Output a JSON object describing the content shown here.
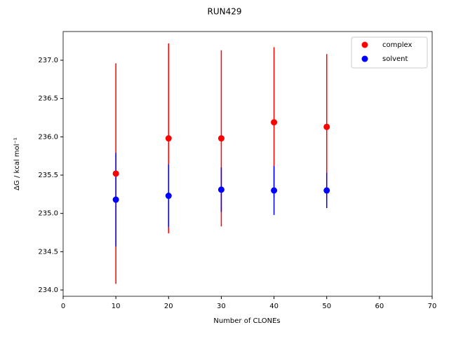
{
  "chart_data": {
    "type": "errorbar-scatter",
    "title": "RUN429",
    "xlabel": "Number of CLONEs",
    "ylabel": "ΔG / kcal mol⁻¹",
    "x": [
      10,
      20,
      30,
      40,
      50
    ],
    "series": [
      {
        "name": "complex",
        "color": "#ff0000",
        "values": [
          235.52,
          235.98,
          235.98,
          236.19,
          236.13
        ],
        "errors": [
          1.44,
          1.24,
          1.15,
          0.98,
          0.95
        ]
      },
      {
        "name": "solvent",
        "color": "#0000ff",
        "values": [
          235.18,
          235.23,
          235.31,
          235.3,
          235.3
        ],
        "errors": [
          0.61,
          0.41,
          0.29,
          0.32,
          0.23
        ]
      }
    ],
    "xlim": [
      0,
      70
    ],
    "xticks": [
      0,
      10,
      20,
      30,
      40,
      50,
      60,
      70
    ],
    "ylim": [
      233.918,
      237.375
    ],
    "yticks": [
      {
        "value": 234.0,
        "label": "234.0"
      },
      {
        "value": 234.5,
        "label": "234.5"
      },
      {
        "value": 235.0,
        "label": "235.0"
      },
      {
        "value": 235.5,
        "label": "235.5"
      },
      {
        "value": 236.0,
        "label": "236.0"
      },
      {
        "value": 236.5,
        "label": "236.5"
      },
      {
        "value": 237.0,
        "label": "237.0"
      }
    ],
    "legend": "upper right"
  }
}
